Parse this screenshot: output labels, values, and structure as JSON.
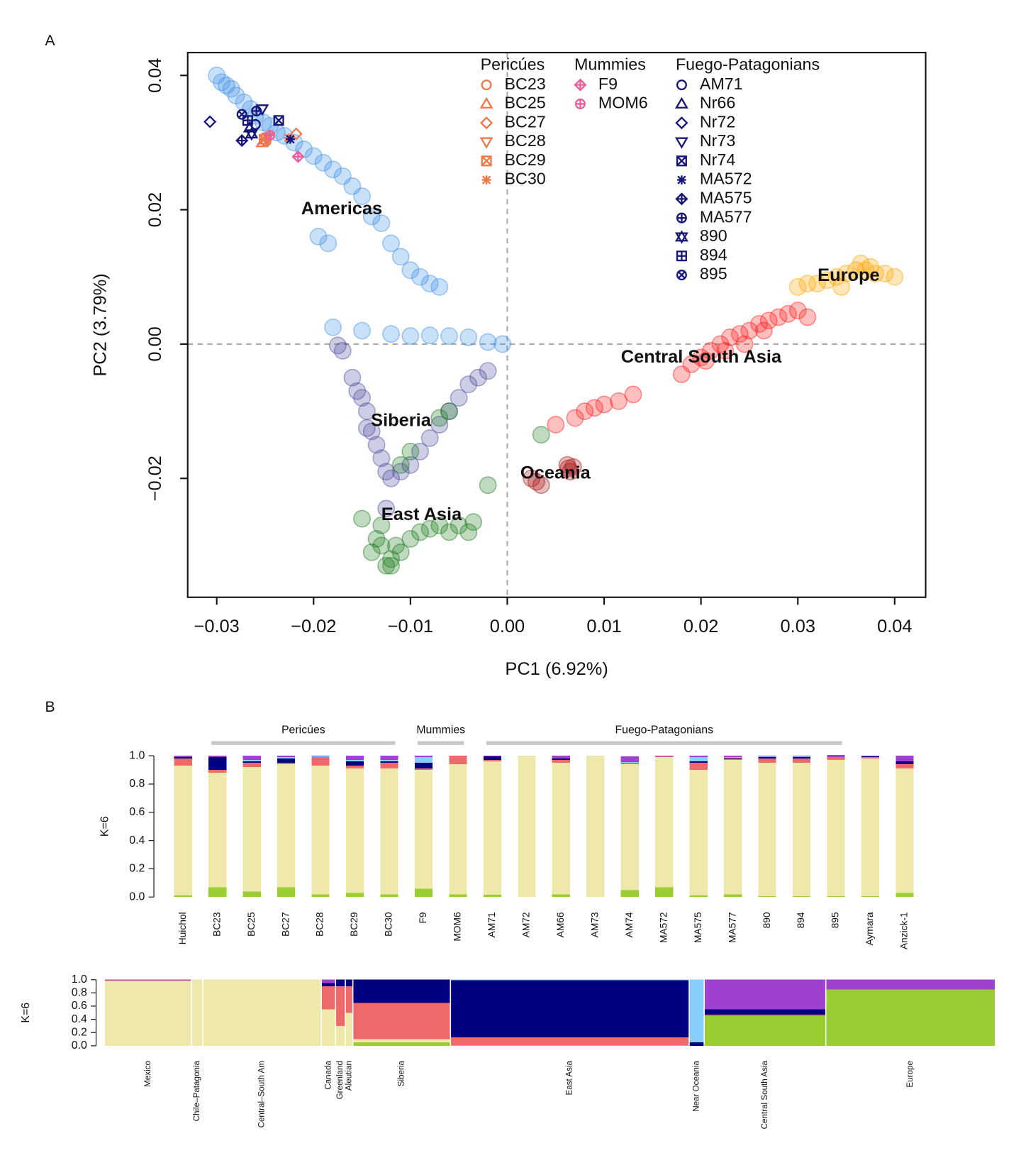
{
  "chart_data": [
    {
      "type": "scatter",
      "panel": "A",
      "xlabel": "PC1 (6.92%)",
      "ylabel": "PC2 (3.79%)",
      "xlim": [
        -0.033,
        0.0432
      ],
      "ylim": [
        -0.0377,
        0.0434
      ],
      "xticks": [
        {
          "value": -0.03,
          "label": "−0.03"
        },
        {
          "value": -0.02,
          "label": "−0.02"
        },
        {
          "value": -0.01,
          "label": "−0.01"
        },
        {
          "value": 0,
          "label": "0.00"
        },
        0.01,
        0.02,
        0.03,
        0.04
      ],
      "yticks": [
        {
          "value": -0.02,
          "label": "−0.02"
        },
        {
          "value": 0,
          "label": "0.00"
        },
        0.02,
        0.04
      ],
      "zero_lines": true,
      "series": [
        {
          "name": "Americas",
          "color": "#3d8fe8",
          "x": [
            -0.03,
            -0.0295,
            -0.029,
            -0.0285,
            -0.028,
            -0.0272,
            -0.0265,
            -0.026,
            -0.0252,
            -0.0245,
            -0.0238,
            -0.023,
            -0.022,
            -0.021,
            -0.02,
            -0.019,
            -0.018,
            -0.017,
            -0.016,
            -0.015,
            -0.014,
            -0.013,
            -0.012,
            -0.011,
            -0.01,
            -0.009,
            -0.008,
            -0.007,
            -0.0195,
            -0.0185,
            -0.018,
            -0.015,
            -0.012,
            -0.01,
            -0.008,
            -0.006,
            -0.004,
            -0.002,
            -0.0005
          ],
          "y": [
            0.04,
            0.039,
            0.0385,
            0.038,
            0.037,
            0.036,
            0.035,
            0.034,
            0.033,
            0.0325,
            0.0315,
            0.031,
            0.03,
            0.029,
            0.028,
            0.027,
            0.026,
            0.025,
            0.0235,
            0.022,
            0.019,
            0.018,
            0.015,
            0.013,
            0.011,
            0.01,
            0.009,
            0.0085,
            0.016,
            0.015,
            0.0025,
            0.002,
            0.0015,
            0.0012,
            0.0013,
            0.0012,
            0.001,
            0.0003,
            0
          ]
        },
        {
          "name": "Siberia",
          "color": "#4a4aa0",
          "x": [
            -0.0175,
            -0.017,
            -0.016,
            -0.0155,
            -0.015,
            -0.0145,
            -0.014,
            -0.0135,
            -0.013,
            -0.0125,
            -0.012,
            -0.011,
            -0.01,
            -0.009,
            -0.008,
            -0.007,
            -0.006,
            -0.005,
            -0.004,
            -0.003,
            -0.002,
            -0.0145,
            -0.0125
          ],
          "y": [
            -0.0002,
            -0.001,
            -0.005,
            -0.007,
            -0.008,
            -0.01,
            -0.013,
            -0.015,
            -0.017,
            -0.019,
            -0.02,
            -0.019,
            -0.018,
            -0.016,
            -0.014,
            -0.012,
            -0.01,
            -0.008,
            -0.006,
            -0.005,
            -0.004,
            -0.0125,
            -0.0245
          ]
        },
        {
          "name": "East Asia",
          "color": "#1a7a1a",
          "x": [
            -0.014,
            -0.013,
            -0.012,
            -0.011,
            -0.0125,
            -0.0135,
            -0.0115,
            -0.01,
            -0.009,
            -0.008,
            -0.007,
            -0.006,
            -0.005,
            -0.004,
            -0.0035,
            -0.015,
            -0.013,
            -0.012,
            -0.006,
            -0.007,
            -0.01,
            -0.011,
            -0.002,
            0.0035
          ],
          "y": [
            -0.031,
            -0.03,
            -0.032,
            -0.031,
            -0.033,
            -0.029,
            -0.03,
            -0.029,
            -0.028,
            -0.0275,
            -0.027,
            -0.028,
            -0.027,
            -0.028,
            -0.0265,
            -0.026,
            -0.027,
            -0.033,
            -0.01,
            -0.011,
            -0.016,
            -0.018,
            -0.021,
            -0.0135
          ]
        },
        {
          "name": "Central South Asia",
          "color": "#ff1a1a",
          "x": [
            0.018,
            0.019,
            0.02,
            0.021,
            0.022,
            0.023,
            0.024,
            0.025,
            0.026,
            0.027,
            0.028,
            0.029,
            0.03,
            0.031,
            0.0205,
            0.0225,
            0.0245,
            0.0265,
            0.005,
            0.007,
            0.008,
            0.009,
            0.01,
            0.0115,
            0.013
          ],
          "y": [
            -0.0045,
            -0.003,
            -0.002,
            -0.001,
            0,
            0.001,
            0.0015,
            0.002,
            0.003,
            0.0035,
            0.004,
            0.0045,
            0.005,
            0.004,
            -0.0025,
            -0.001,
            0,
            0.002,
            -0.012,
            -0.011,
            -0.01,
            -0.0095,
            -0.009,
            -0.0085,
            -0.0075
          ]
        },
        {
          "name": "Europe",
          "color": "#ffa500",
          "x": [
            0.03,
            0.031,
            0.032,
            0.033,
            0.034,
            0.035,
            0.036,
            0.037,
            0.038,
            0.039,
            0.04,
            0.0365,
            0.0375,
            0.0345
          ],
          "y": [
            0.0085,
            0.009,
            0.009,
            0.0095,
            0.01,
            0.0105,
            0.011,
            0.011,
            0.0105,
            0.0105,
            0.01,
            0.012,
            0.0115,
            0.0085
          ]
        },
        {
          "name": "Oceania",
          "color": "#a81010",
          "x": [
            0.0063,
            0.0065,
            0.0062,
            0.003,
            0.0035,
            0.0025,
            0.0068
          ],
          "y": [
            -0.0185,
            -0.019,
            -0.018,
            -0.0205,
            -0.021,
            -0.02,
            -0.0183
          ]
        }
      ],
      "legend": [
        {
          "title": "Pericúes",
          "color": "#f07848",
          "samples": [
            {
              "name": "BC23",
              "marker": "circle",
              "x": -0.0249,
              "y": 0.0302
            },
            {
              "name": "BC25",
              "marker": "triangle",
              "x": -0.0253,
              "y": 0.03
            },
            {
              "name": "BC27",
              "marker": "diamond",
              "x": -0.0218,
              "y": 0.0313
            },
            {
              "name": "BC28",
              "marker": "triangle-down",
              "x": -0.0247,
              "y": 0.0308
            },
            {
              "name": "BC29",
              "marker": "square-x",
              "x": -0.0251,
              "y": 0.0305
            },
            {
              "name": "BC30",
              "marker": "asterisk",
              "x": -0.0226,
              "y": 0.0307
            }
          ]
        },
        {
          "title": "Mummies",
          "color": "#e8609c",
          "samples": [
            {
              "name": "F9",
              "marker": "diamond-plus",
              "x": -0.0216,
              "y": 0.0279
            },
            {
              "name": "MOM6",
              "marker": "circle-plus",
              "x": -0.0245,
              "y": 0.0311
            }
          ]
        },
        {
          "title": "Fuego-Patagonians",
          "color": "#16167a",
          "samples": [
            {
              "name": "AM71",
              "marker": "circle",
              "x": -0.026,
              "y": 0.0327
            },
            {
              "name": "Nr66",
              "marker": "triangle",
              "x": -0.0266,
              "y": 0.0322
            },
            {
              "name": "Nr72",
              "marker": "diamond",
              "x": -0.0307,
              "y": 0.0331
            },
            {
              "name": "Nr73",
              "marker": "triangle-down",
              "x": -0.0253,
              "y": 0.035
            },
            {
              "name": "Nr74",
              "marker": "square-x",
              "x": -0.0236,
              "y": 0.0333
            },
            {
              "name": "MA572",
              "marker": "asterisk",
              "x": -0.0224,
              "y": 0.0305
            },
            {
              "name": "MA575",
              "marker": "diamond-plus",
              "x": -0.0274,
              "y": 0.0303
            },
            {
              "name": "MA577",
              "marker": "circle-plus",
              "x": -0.0259,
              "y": 0.0347
            },
            {
              "name": "890",
              "marker": "star",
              "x": -0.0264,
              "y": 0.0313
            },
            {
              "name": "894",
              "marker": "square-plus",
              "x": -0.0268,
              "y": 0.0333
            },
            {
              "name": "895",
              "marker": "circle-x",
              "x": -0.0274,
              "y": 0.0342
            }
          ]
        }
      ]
    },
    {
      "type": "bar",
      "stacked": true,
      "panel": "B",
      "ylabel": "K=6",
      "categories": [
        "Huichol",
        "BC23",
        "BC25",
        "BC27",
        "BC28",
        "BC29",
        "BC30",
        "F9",
        "MOM6",
        "AM71",
        "AM72",
        "AM66",
        "AM73",
        "AM74",
        "MA572",
        "MA575",
        "MA577",
        "890",
        "894",
        "895",
        "Aymara",
        "Anzick-1"
      ],
      "spans": [
        {
          "label": "Pericúes",
          "first": "BC23",
          "last": "BC30"
        },
        {
          "label": "Mummies",
          "first": "F9",
          "last": "MOM6"
        },
        {
          "label": "Fuego-Patagonians",
          "first": "AM71",
          "last": "895"
        }
      ],
      "ylim": [
        0,
        1
      ],
      "yticks": [
        {
          "value": 0,
          "label": "0.0"
        },
        0.2,
        0.4,
        0.6,
        0.8,
        {
          "value": 1,
          "label": "1.0"
        }
      ],
      "series": [
        {
          "color": "#9acd32",
          "values": [
            0.01,
            0.07,
            0.04,
            0.07,
            0.02,
            0.03,
            0.02,
            0.06,
            0.02,
            0.015,
            0,
            0.02,
            0,
            0.05,
            0.07,
            0.01,
            0.02,
            0.005,
            0.005,
            0.005,
            0.005,
            0.03
          ]
        },
        {
          "color": "#eee8aa",
          "values": [
            0.92,
            0.81,
            0.88,
            0.87,
            0.91,
            0.88,
            0.89,
            0.84,
            0.92,
            0.945,
            1,
            0.93,
            1,
            0.89,
            0.92,
            0.89,
            0.95,
            0.945,
            0.945,
            0.965,
            0.975,
            0.88
          ]
        },
        {
          "color": "#ee6a6a",
          "values": [
            0.05,
            0.02,
            0.03,
            0.01,
            0.06,
            0.02,
            0.04,
            0.01,
            0.06,
            0.01,
            0,
            0.02,
            0,
            0.01,
            0.005,
            0.05,
            0.01,
            0.03,
            0.03,
            0.02,
            0.01,
            0.03
          ]
        },
        {
          "color": "#000080",
          "values": [
            0.01,
            0.09,
            0.01,
            0.03,
            0,
            0.03,
            0.01,
            0.04,
            0,
            0.025,
            0,
            0.01,
            0,
            0,
            0,
            0.01,
            0.005,
            0.01,
            0.01,
            0,
            0.005,
            0.02
          ]
        },
        {
          "color": "#87cefa",
          "values": [
            0,
            0,
            0.01,
            0.01,
            0.005,
            0.01,
            0.01,
            0.04,
            0,
            0,
            0,
            0,
            0,
            0.005,
            0,
            0.03,
            0.005,
            0.005,
            0.005,
            0,
            0,
            0
          ]
        },
        {
          "color": "#a040d0",
          "values": [
            0.01,
            0.01,
            0.03,
            0.01,
            0.005,
            0.03,
            0.03,
            0.01,
            0,
            0.005,
            0,
            0.02,
            0,
            0.04,
            0.005,
            0.01,
            0.01,
            0.005,
            0.005,
            0.015,
            0.005,
            0.04
          ]
        }
      ]
    },
    {
      "type": "bar",
      "stacked": true,
      "ylabel": "K=6",
      "categories": [
        "Mexico",
        "Chile–Patagonia",
        "Central–South Am",
        "Canada",
        "Greenland",
        "Aleutian",
        "Siberia",
        "East Asia",
        "Near Oceania",
        "Central South Asia",
        "Europe"
      ],
      "n": [
        115,
        15,
        158,
        19,
        13,
        10,
        130,
        318,
        20,
        162,
        225
      ],
      "ylim": [
        0,
        1
      ],
      "yticks": [
        {
          "value": 0,
          "label": "0.0"
        },
        0.2,
        0.4,
        0.6,
        0.8,
        {
          "value": 1,
          "label": "1.0"
        }
      ],
      "series": [
        {
          "color": "#9acd32",
          "values": [
            0,
            0,
            0,
            0,
            0,
            0,
            0.05,
            0.01,
            0,
            0.45,
            0.85
          ]
        },
        {
          "color": "#eee8aa",
          "values": [
            0.98,
            1,
            1,
            0.55,
            0.3,
            0.5,
            0.05,
            0,
            0,
            0,
            0
          ]
        },
        {
          "color": "#ee6a6a",
          "values": [
            0.01,
            0,
            0,
            0.35,
            0.6,
            0.4,
            0.55,
            0.12,
            0,
            0.02,
            0
          ]
        },
        {
          "color": "#000080",
          "values": [
            0,
            0,
            0,
            0.05,
            0.1,
            0.1,
            0.35,
            0.86,
            0.05,
            0.08,
            0
          ]
        },
        {
          "color": "#87cefa",
          "values": [
            0,
            0,
            0,
            0,
            0,
            0,
            0,
            0.01,
            0.95,
            0,
            0
          ]
        },
        {
          "color": "#a040d0",
          "values": [
            0.01,
            0,
            0,
            0.05,
            0,
            0,
            0,
            0,
            0,
            0.45,
            0.15
          ]
        }
      ]
    }
  ]
}
